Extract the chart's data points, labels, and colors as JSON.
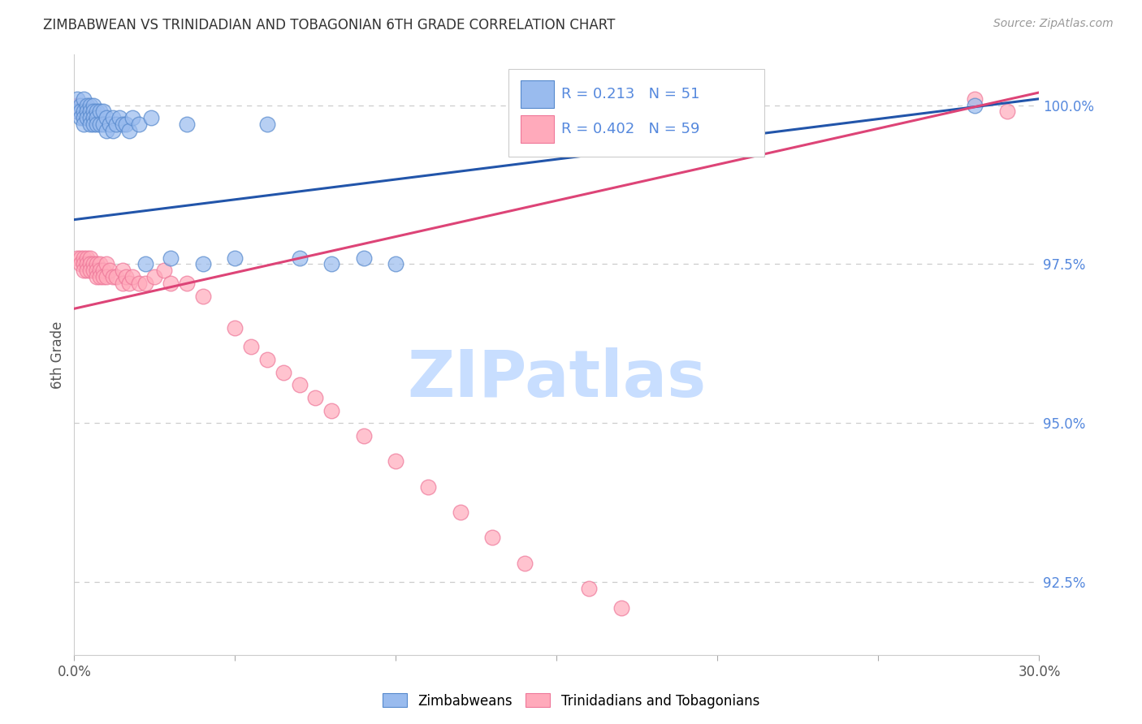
{
  "title": "ZIMBABWEAN VS TRINIDADIAN AND TOBAGONIAN 6TH GRADE CORRELATION CHART",
  "source": "Source: ZipAtlas.com",
  "ylabel": "6th Grade",
  "xmin": 0.0,
  "xmax": 0.3,
  "ymin": 0.9135,
  "ymax": 1.008,
  "yticks": [
    0.925,
    0.95,
    0.975,
    1.0
  ],
  "ytick_labels": [
    "92.5%",
    "95.0%",
    "97.5%",
    "100.0%"
  ],
  "blue_R": 0.213,
  "blue_N": 51,
  "pink_R": 0.402,
  "pink_N": 59,
  "blue_color": "#99BBEE",
  "pink_color": "#FFAABB",
  "blue_edge_color": "#5588CC",
  "pink_edge_color": "#EE7799",
  "blue_line_color": "#2255AA",
  "pink_line_color": "#DD4477",
  "blue_label": "Zimbabweans",
  "pink_label": "Trinidadians and Tobagonians",
  "title_color": "#333333",
  "grid_color": "#CCCCCC",
  "right_tick_color": "#5588DD",
  "watermark_color": "#C8DEFF",
  "blue_line_x0": 0.0,
  "blue_line_y0": 0.982,
  "blue_line_x1": 0.3,
  "blue_line_y1": 1.001,
  "pink_line_x0": 0.0,
  "pink_line_y0": 0.968,
  "pink_line_x1": 0.3,
  "pink_line_y1": 1.002,
  "blue_x": [
    0.001,
    0.001,
    0.002,
    0.002,
    0.002,
    0.003,
    0.003,
    0.003,
    0.003,
    0.004,
    0.004,
    0.004,
    0.005,
    0.005,
    0.005,
    0.005,
    0.006,
    0.006,
    0.006,
    0.006,
    0.007,
    0.007,
    0.007,
    0.008,
    0.008,
    0.009,
    0.009,
    0.01,
    0.01,
    0.011,
    0.012,
    0.012,
    0.013,
    0.014,
    0.015,
    0.016,
    0.017,
    0.018,
    0.02,
    0.022,
    0.024,
    0.03,
    0.035,
    0.04,
    0.05,
    0.06,
    0.07,
    0.08,
    0.09,
    0.1,
    0.28
  ],
  "blue_y": [
    1.001,
    0.999,
    1.0,
    0.999,
    0.998,
    1.001,
    0.999,
    0.998,
    0.997,
    1.0,
    0.999,
    0.998,
    1.0,
    0.999,
    0.998,
    0.997,
    1.0,
    0.999,
    0.998,
    0.997,
    0.999,
    0.998,
    0.997,
    0.999,
    0.997,
    0.999,
    0.997,
    0.998,
    0.996,
    0.997,
    0.998,
    0.996,
    0.997,
    0.998,
    0.997,
    0.997,
    0.996,
    0.998,
    0.997,
    0.975,
    0.998,
    0.976,
    0.997,
    0.975,
    0.976,
    0.997,
    0.976,
    0.975,
    0.976,
    0.975,
    1.0
  ],
  "pink_x": [
    0.001,
    0.001,
    0.001,
    0.002,
    0.002,
    0.002,
    0.003,
    0.003,
    0.003,
    0.004,
    0.004,
    0.004,
    0.005,
    0.005,
    0.005,
    0.006,
    0.006,
    0.007,
    0.007,
    0.007,
    0.008,
    0.008,
    0.008,
    0.009,
    0.009,
    0.01,
    0.01,
    0.011,
    0.012,
    0.013,
    0.015,
    0.015,
    0.016,
    0.017,
    0.018,
    0.02,
    0.022,
    0.025,
    0.028,
    0.03,
    0.035,
    0.04,
    0.05,
    0.055,
    0.06,
    0.065,
    0.07,
    0.075,
    0.08,
    0.09,
    0.1,
    0.11,
    0.12,
    0.13,
    0.14,
    0.16,
    0.17,
    0.28,
    0.29
  ],
  "pink_y": [
    1.0,
    0.999,
    0.976,
    0.999,
    0.976,
    0.975,
    0.976,
    0.975,
    0.974,
    0.976,
    0.975,
    0.974,
    0.976,
    0.975,
    0.974,
    0.975,
    0.974,
    0.975,
    0.974,
    0.973,
    0.975,
    0.974,
    0.973,
    0.974,
    0.973,
    0.975,
    0.973,
    0.974,
    0.973,
    0.973,
    0.974,
    0.972,
    0.973,
    0.972,
    0.973,
    0.972,
    0.972,
    0.973,
    0.974,
    0.972,
    0.972,
    0.97,
    0.965,
    0.962,
    0.96,
    0.958,
    0.956,
    0.954,
    0.952,
    0.948,
    0.944,
    0.94,
    0.936,
    0.932,
    0.928,
    0.924,
    0.921,
    1.001,
    0.999
  ]
}
